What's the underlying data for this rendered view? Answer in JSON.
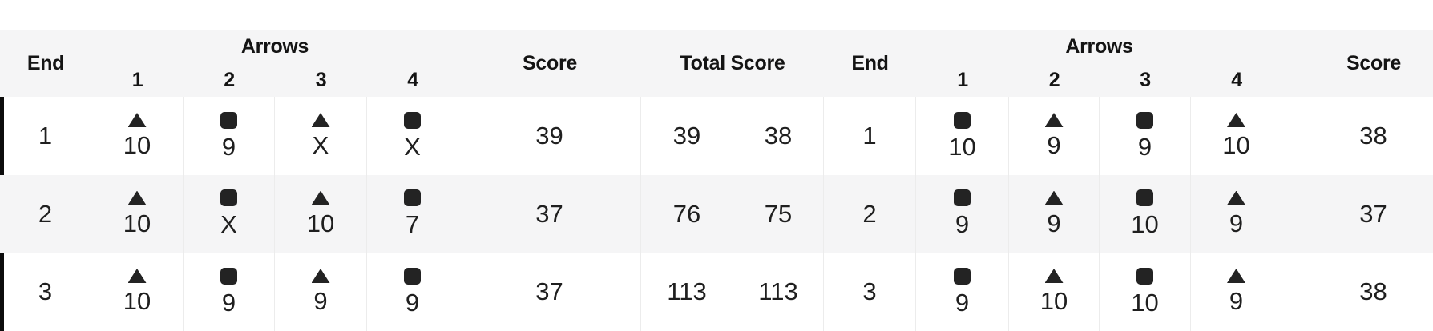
{
  "colors": {
    "zebra_band": "#f5f5f6",
    "row_marker": "#0c0c0c",
    "icon_fill": "#232323",
    "cell_border": "#ececec",
    "header_text": "#141414",
    "value_text": "#1f1f1f"
  },
  "table": {
    "left": {
      "end_header": "End",
      "arrows_header": "Arrows",
      "arrow_numbers": [
        "1",
        "2",
        "3",
        "4"
      ],
      "score_header": "Score"
    },
    "center": {
      "total_score_header": "Total Score"
    },
    "right": {
      "end_header": "End",
      "arrows_header": "Arrows",
      "arrow_numbers": [
        "1",
        "2",
        "3",
        "4"
      ],
      "score_header": "Score"
    }
  },
  "rows": [
    {
      "selected": true,
      "left": {
        "end": "1",
        "arrows": [
          {
            "icon": "triangle",
            "value": "10"
          },
          {
            "icon": "square",
            "value": "9"
          },
          {
            "icon": "triangle",
            "value": "X"
          },
          {
            "icon": "square",
            "value": "X"
          }
        ],
        "score": "39"
      },
      "totals": [
        "39",
        "38"
      ],
      "right": {
        "end": "1",
        "arrows": [
          {
            "icon": "square",
            "value": "10"
          },
          {
            "icon": "triangle",
            "value": "9"
          },
          {
            "icon": "square",
            "value": "9"
          },
          {
            "icon": "triangle",
            "value": "10"
          }
        ],
        "score": "38"
      }
    },
    {
      "selected": false,
      "left": {
        "end": "2",
        "arrows": [
          {
            "icon": "triangle",
            "value": "10"
          },
          {
            "icon": "square",
            "value": "X"
          },
          {
            "icon": "triangle",
            "value": "10"
          },
          {
            "icon": "square",
            "value": "7"
          }
        ],
        "score": "37"
      },
      "totals": [
        "76",
        "75"
      ],
      "right": {
        "end": "2",
        "arrows": [
          {
            "icon": "square",
            "value": "9"
          },
          {
            "icon": "triangle",
            "value": "9"
          },
          {
            "icon": "square",
            "value": "10"
          },
          {
            "icon": "triangle",
            "value": "9"
          }
        ],
        "score": "37"
      }
    },
    {
      "selected": true,
      "left": {
        "end": "3",
        "arrows": [
          {
            "icon": "triangle",
            "value": "10"
          },
          {
            "icon": "square",
            "value": "9"
          },
          {
            "icon": "triangle",
            "value": "9"
          },
          {
            "icon": "square",
            "value": "9"
          }
        ],
        "score": "37"
      },
      "totals": [
        "113",
        "113"
      ],
      "right": {
        "end": "3",
        "arrows": [
          {
            "icon": "square",
            "value": "9"
          },
          {
            "icon": "triangle",
            "value": "10"
          },
          {
            "icon": "square",
            "value": "10"
          },
          {
            "icon": "triangle",
            "value": "9"
          }
        ],
        "score": "38"
      }
    }
  ]
}
